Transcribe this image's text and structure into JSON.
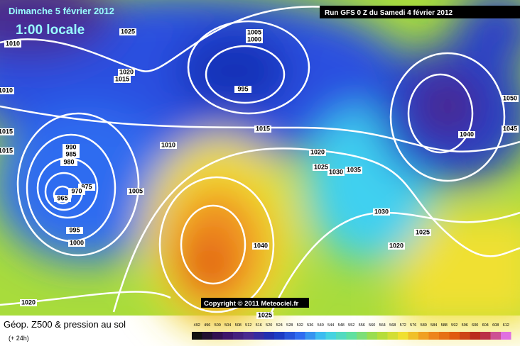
{
  "header": {
    "date": "Dimanche 5 février 2012",
    "time": "1:00 locale",
    "run": "Run GFS 0 Z du Samedi 4 février 2012"
  },
  "copyright": "Copyright © 2011 Meteociel.fr",
  "isobar_labels": [
    "1025",
    "1010",
    "1020",
    "1015",
    "1005",
    "1000",
    "995",
    "1010",
    "1015",
    "1015",
    "990",
    "985",
    "980",
    "975",
    "970",
    "965",
    "995",
    "1000",
    "1005",
    "1010",
    "1015",
    "1020",
    "1025",
    "1030",
    "1035",
    "1040",
    "1030",
    "1025",
    "1020",
    "1050",
    "1045",
    "1040",
    "1020",
    "1025"
  ],
  "footer": {
    "title": "Géop. Z500 & pression au sol",
    "lead": "(+ 24h)"
  },
  "legend": [
    492,
    496,
    500,
    504,
    508,
    512,
    516,
    520,
    524,
    528,
    532,
    536,
    540,
    544,
    548,
    552,
    556,
    560,
    564,
    568,
    572,
    576,
    580,
    584,
    588,
    592,
    596,
    600,
    604,
    608,
    612
  ]
}
